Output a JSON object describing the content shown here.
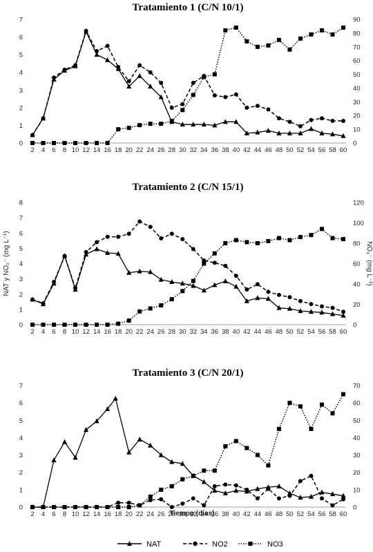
{
  "figure": {
    "xlabel": "Tiempo (días)",
    "legend": [
      {
        "name": "NAT",
        "style": "solid",
        "marker": "triangle"
      },
      {
        "name": "NO2",
        "style": "dashed",
        "marker": "circle"
      },
      {
        "name": "NO3",
        "style": "dotted",
        "marker": "square"
      }
    ]
  },
  "chart_data": [
    {
      "type": "line",
      "title": "Tratamiento 1 (C/N 10/1)",
      "xlabel": "",
      "ylabel": "",
      "ylabel_right": "",
      "xlim": [
        2,
        60
      ],
      "x_ticks": [
        2,
        4,
        6,
        8,
        10,
        12,
        14,
        16,
        18,
        20,
        22,
        24,
        26,
        28,
        30,
        32,
        34,
        36,
        38,
        40,
        42,
        44,
        46,
        48,
        50,
        52,
        54,
        56,
        58,
        60
      ],
      "ylim": [
        0,
        7
      ],
      "y_ticks": [
        0,
        1,
        2,
        3,
        4,
        5,
        6,
        7
      ],
      "ylim_right": [
        0,
        90
      ],
      "y_ticks_right": [
        0,
        10,
        20,
        30,
        40,
        50,
        60,
        70,
        80,
        90
      ],
      "series": [
        {
          "name": "NAT",
          "axis": "left",
          "x": [
            2,
            4,
            6,
            8,
            10,
            12,
            14,
            16,
            18,
            20,
            22,
            24,
            26,
            28,
            30,
            32,
            34,
            36,
            38,
            40,
            42,
            44,
            46,
            48,
            50,
            52,
            54,
            56,
            58,
            60
          ],
          "values": [
            0.45,
            1.4,
            3.6,
            4.1,
            4.35,
            6.3,
            5.0,
            4.7,
            4.2,
            3.2,
            3.8,
            3.2,
            2.6,
            1.2,
            1.05,
            1.05,
            1.05,
            1.0,
            1.2,
            1.2,
            0.55,
            0.6,
            0.7,
            0.55,
            0.55,
            0.55,
            0.8,
            0.55,
            0.5,
            0.4
          ]
        },
        {
          "name": "NO2",
          "axis": "left",
          "x": [
            2,
            4,
            6,
            8,
            10,
            12,
            14,
            16,
            18,
            20,
            22,
            24,
            26,
            28,
            30,
            32,
            34,
            36,
            38,
            40,
            42,
            44,
            46,
            48,
            50,
            52,
            54,
            56,
            58,
            60
          ],
          "values": [
            0.45,
            1.4,
            3.7,
            4.15,
            4.4,
            6.35,
            5.2,
            5.5,
            4.3,
            3.5,
            4.4,
            4.0,
            3.4,
            2.0,
            2.2,
            3.4,
            3.8,
            2.7,
            2.6,
            2.75,
            2.0,
            2.1,
            1.9,
            1.4,
            1.2,
            0.95,
            1.3,
            1.4,
            1.25,
            1.25
          ]
        },
        {
          "name": "NO3",
          "axis": "right",
          "x": [
            2,
            4,
            6,
            8,
            10,
            12,
            14,
            16,
            18,
            20,
            22,
            24,
            26,
            28,
            30,
            32,
            34,
            36,
            38,
            40,
            42,
            44,
            46,
            48,
            50,
            52,
            54,
            56,
            58,
            60
          ],
          "values": [
            0,
            0,
            0,
            0,
            0,
            0,
            0,
            0,
            10,
            11,
            13,
            14,
            14,
            16,
            24,
            35,
            48,
            50,
            82,
            84,
            74,
            70,
            71,
            75,
            68,
            76,
            79,
            82,
            79,
            84
          ]
        }
      ]
    },
    {
      "type": "line",
      "title": "Tratamiento 2 (C/N 15/1)",
      "xlabel": "",
      "ylabel": "NAT y NO₂⁻ (mg L⁻¹)",
      "ylabel_right": "NO₃⁻ (mg L⁻¹)",
      "xlim": [
        2,
        60
      ],
      "x_ticks": [
        2,
        4,
        6,
        8,
        10,
        12,
        14,
        16,
        18,
        20,
        22,
        24,
        26,
        28,
        30,
        32,
        34,
        36,
        38,
        40,
        42,
        44,
        46,
        48,
        50,
        52,
        54,
        56,
        58,
        60
      ],
      "ylim": [
        0,
        8
      ],
      "y_ticks": [
        0,
        1,
        2,
        3,
        4,
        5,
        6,
        7,
        8
      ],
      "ylim_right": [
        0,
        120
      ],
      "y_ticks_right": [
        0,
        20,
        40,
        60,
        80,
        100,
        120
      ],
      "series": [
        {
          "name": "NAT",
          "axis": "left",
          "x": [
            2,
            4,
            6,
            8,
            10,
            12,
            14,
            16,
            18,
            20,
            22,
            24,
            26,
            28,
            30,
            32,
            34,
            36,
            38,
            40,
            42,
            44,
            46,
            48,
            50,
            52,
            54,
            56,
            58,
            60
          ],
          "values": [
            1.65,
            1.35,
            2.7,
            4.5,
            2.3,
            4.6,
            4.95,
            4.7,
            4.65,
            3.4,
            3.5,
            3.45,
            2.95,
            2.8,
            2.7,
            2.55,
            2.25,
            2.6,
            2.85,
            2.5,
            1.55,
            1.75,
            1.7,
            1.1,
            1.05,
            0.9,
            0.85,
            0.8,
            0.7,
            0.6
          ]
        },
        {
          "name": "NO2",
          "axis": "left",
          "x": [
            2,
            4,
            6,
            8,
            10,
            12,
            14,
            16,
            18,
            20,
            22,
            24,
            26,
            28,
            30,
            32,
            34,
            36,
            38,
            40,
            42,
            44,
            46,
            48,
            50,
            52,
            54,
            56,
            58,
            60
          ],
          "values": [
            1.65,
            1.4,
            2.8,
            4.5,
            2.4,
            4.75,
            5.4,
            5.75,
            5.75,
            5.95,
            6.75,
            6.4,
            5.65,
            5.95,
            5.6,
            4.95,
            4.2,
            4.05,
            3.85,
            3.2,
            2.3,
            2.65,
            2.15,
            1.95,
            1.8,
            1.55,
            1.35,
            1.2,
            1.1,
            0.85
          ]
        },
        {
          "name": "NO3",
          "axis": "right",
          "x": [
            2,
            4,
            6,
            8,
            10,
            12,
            14,
            16,
            18,
            20,
            22,
            24,
            26,
            28,
            30,
            32,
            34,
            36,
            38,
            40,
            42,
            44,
            46,
            48,
            50,
            52,
            54,
            56,
            58,
            60
          ],
          "values": [
            0,
            0,
            0,
            0,
            0,
            0,
            0,
            0,
            1,
            4,
            13,
            16,
            19,
            25,
            33,
            43,
            60,
            70,
            80,
            83,
            81,
            80,
            82,
            85,
            83,
            86,
            88,
            94,
            85,
            84
          ]
        }
      ]
    },
    {
      "type": "line",
      "title": "Tratamiento 3 (C/N 20/1)",
      "xlabel": "Tiempo (días)",
      "ylabel": "",
      "ylabel_right": "",
      "xlim": [
        2,
        60
      ],
      "x_ticks": [
        2,
        4,
        6,
        8,
        10,
        12,
        14,
        16,
        18,
        20,
        22,
        24,
        26,
        28,
        30,
        32,
        34,
        36,
        38,
        40,
        42,
        44,
        46,
        48,
        50,
        52,
        54,
        56,
        58,
        60
      ],
      "ylim": [
        0,
        7
      ],
      "y_ticks": [
        0,
        1,
        2,
        3,
        4,
        5,
        6,
        7
      ],
      "ylim_right": [
        0,
        70
      ],
      "y_ticks_right": [
        0,
        10,
        20,
        30,
        40,
        50,
        60,
        70
      ],
      "series": [
        {
          "name": "NAT",
          "axis": "left",
          "x": [
            2,
            4,
            6,
            8,
            10,
            12,
            14,
            16,
            17.5,
            20,
            22,
            24,
            26,
            28,
            30,
            32,
            34,
            36,
            38,
            40,
            42,
            44,
            46,
            48,
            50,
            52,
            54,
            56,
            58,
            60
          ],
          "values": [
            0,
            0,
            2.7,
            3.75,
            2.85,
            4.45,
            4.95,
            5.65,
            6.25,
            3.15,
            3.9,
            3.55,
            3.0,
            2.6,
            2.5,
            1.8,
            1.45,
            0.95,
            0.8,
            0.95,
            0.9,
            1.05,
            1.15,
            1.2,
            0.8,
            0.55,
            0.6,
            0.85,
            0.75,
            0.65
          ]
        },
        {
          "name": "NO2",
          "axis": "left",
          "x": [
            2,
            4,
            6,
            8,
            10,
            12,
            14,
            16,
            18,
            20,
            22,
            24,
            26,
            28,
            30,
            32,
            34,
            36,
            38,
            40,
            42,
            44,
            46,
            48,
            50,
            52,
            54,
            56,
            58,
            60
          ],
          "values": [
            0,
            0,
            0,
            0,
            0,
            0,
            0,
            0,
            0.25,
            0.25,
            0.1,
            0.4,
            0.45,
            0,
            0.2,
            0.5,
            0.1,
            1.2,
            1.3,
            1.25,
            1.0,
            0.5,
            1.05,
            0.5,
            0.65,
            1.5,
            1.8,
            0.5,
            0.1,
            0.45
          ]
        },
        {
          "name": "NO3",
          "axis": "right",
          "x": [
            2,
            4,
            6,
            8,
            10,
            12,
            14,
            16,
            18,
            20,
            22,
            24,
            26,
            28,
            30,
            32,
            34,
            36,
            38,
            40,
            42,
            44,
            46,
            48,
            50,
            52,
            54,
            56,
            58,
            60
          ],
          "values": [
            0,
            0,
            0,
            0,
            0,
            0,
            0,
            0,
            0,
            0,
            1,
            6,
            10,
            12,
            16,
            18,
            21,
            21,
            35,
            38,
            34,
            30,
            24,
            45,
            60,
            58,
            45,
            59,
            54,
            65
          ]
        }
      ]
    }
  ]
}
